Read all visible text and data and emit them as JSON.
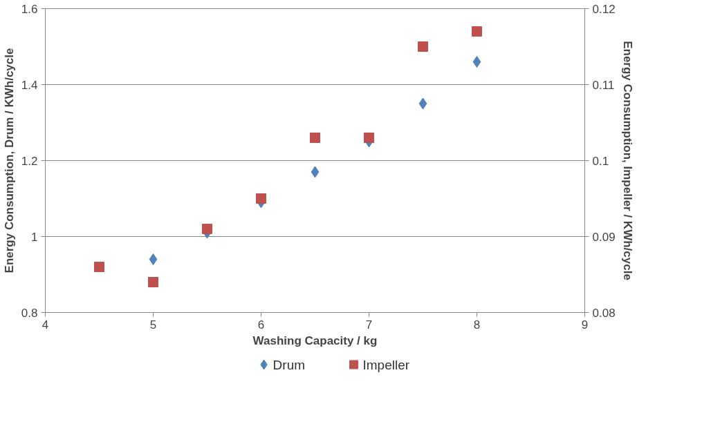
{
  "chart_data": {
    "type": "scatter",
    "xlabel": "Washing Capacity / kg",
    "ylabel": "Energy Consumption, Drum / KWh/cycle",
    "y2label": "Energy Consumption, Impeller / KWh/cycle",
    "xlim": [
      4,
      9
    ],
    "xticks": [
      4,
      5,
      6,
      7,
      8,
      9
    ],
    "ylim": [
      0.8,
      1.6
    ],
    "yticks": [
      0.8,
      1,
      1.2,
      1.4,
      1.6
    ],
    "y2lim": [
      0.08,
      0.12
    ],
    "y2ticks": [
      0.08,
      0.09,
      0.1,
      0.11,
      0.12
    ],
    "grid": "y",
    "legend": "bottom",
    "series": [
      {
        "name": "Drum",
        "color": "#4f81bd",
        "marker": "diamond",
        "x": [
          5,
          5.5,
          6,
          6.5,
          7,
          7.5,
          8
        ],
        "values": [
          0.94,
          1.01,
          1.09,
          1.17,
          1.25,
          1.35,
          1.46
        ]
      },
      {
        "name": "Impeller",
        "color": "#c0504d",
        "marker": "square",
        "axis": "y2",
        "x": [
          4.5,
          5,
          5.5,
          6,
          6.5,
          7,
          7.5,
          8
        ],
        "values": [
          0.086,
          0.084,
          0.091,
          0.095,
          0.103,
          0.103,
          0.115,
          0.117
        ]
      }
    ]
  }
}
